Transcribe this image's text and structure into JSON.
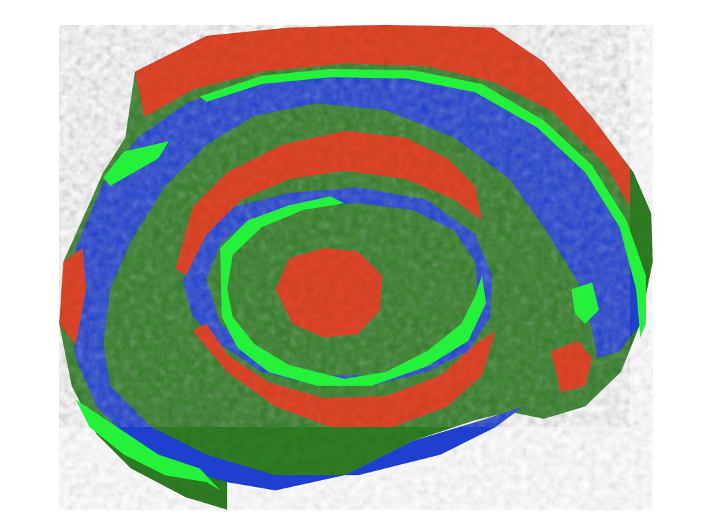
{
  "map": {
    "kind": "procedural terrain overhead view",
    "legend_visible": false,
    "colors": {
      "background": "#ffffff",
      "water": "#1f3fcf",
      "forest_dark": "#0b5a12",
      "forest": "#2f7f22",
      "grass": "#24f23a",
      "rock": "#e0462a"
    },
    "layers": [
      {
        "name": "water",
        "color_key": "water"
      },
      {
        "name": "forest",
        "color_key": "forest"
      },
      {
        "name": "grass",
        "color_key": "grass"
      },
      {
        "name": "rock",
        "color_key": "rock"
      }
    ]
  }
}
